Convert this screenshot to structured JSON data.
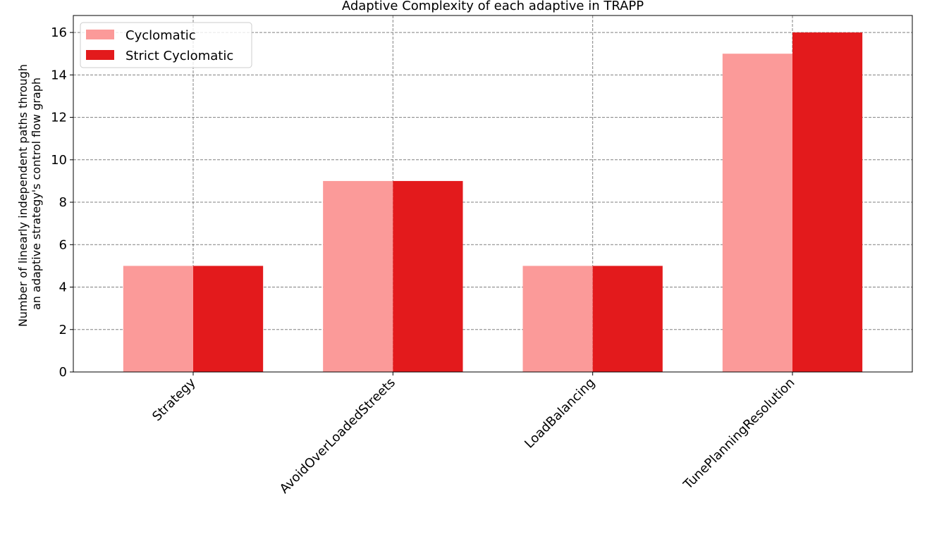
{
  "chart_data": {
    "type": "bar",
    "title": "Adaptive Complexity of each adaptive in TRAPP",
    "xlabel": "",
    "ylabel_lines": [
      "Number of linearly independent paths through",
      "an adaptive strategy's control flow graph"
    ],
    "categories": [
      "Strategy",
      "AvoidOverLoadedStreets",
      "LoadBalancing",
      "TunePlanningResolution"
    ],
    "series": [
      {
        "name": "Cyclomatic",
        "values": [
          5,
          9,
          5,
          15
        ],
        "color": "#fb9a99"
      },
      {
        "name": "Strict Cyclomatic",
        "values": [
          5,
          9,
          5,
          16
        ],
        "color": "#e31a1c"
      }
    ],
    "ylim": [
      0,
      16.8
    ],
    "yticks": [
      "0",
      "2",
      "4",
      "6",
      "8",
      "10",
      "12",
      "14",
      "16"
    ],
    "grid": true,
    "legend_position": "top-left"
  }
}
